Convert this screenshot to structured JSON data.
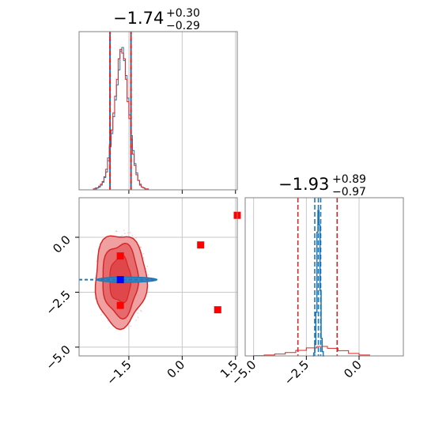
{
  "colors": {
    "red": "#d62728",
    "blue": "#1f77b4",
    "marker_red": "#ff0000",
    "marker_blue": "#0000ff",
    "grid": "#c8c8c8",
    "frame": "#808080",
    "fill_outer": "#f0a0a0",
    "fill_inner": "#e0474a"
  },
  "chart_data": [
    {
      "panel": "marginal-x",
      "type": "histogram",
      "title": {
        "value": "−1.74",
        "upper": "+0.30",
        "lower": "−0.29"
      },
      "xlim": [
        -2.9,
        1.55
      ],
      "grid": true,
      "quantile_lines": [
        -2.03,
        -1.74,
        -1.44
      ],
      "series": [
        {
          "name": "",
          "color": "#1f77b4",
          "bins": [
            -2.5,
            -2.45,
            -2.4,
            -2.35,
            -2.3,
            -2.25,
            -2.2,
            -2.15,
            -2.1,
            -2.05,
            -2.0,
            -1.95,
            -1.9,
            -1.85,
            -1.8,
            -1.75,
            -1.7,
            -1.65,
            -1.6,
            -1.55,
            -1.5,
            -1.45,
            -1.4,
            -1.35,
            -1.3,
            -1.25,
            -1.2,
            -1.15,
            -1.1,
            -1.05,
            -1.0,
            -0.95,
            -0.9
          ],
          "counts": [
            1,
            1,
            2,
            3,
            5,
            8,
            13,
            19,
            31,
            46,
            60,
            78,
            96,
            112,
            128,
            148,
            152,
            138,
            122,
            98,
            80,
            58,
            42,
            28,
            18,
            10,
            6,
            3,
            2,
            1,
            1,
            0
          ]
        },
        {
          "name": "",
          "color": "#d62728",
          "bins": [
            -2.5,
            -2.45,
            -2.4,
            -2.35,
            -2.3,
            -2.25,
            -2.2,
            -2.15,
            -2.1,
            -2.05,
            -2.0,
            -1.95,
            -1.9,
            -1.85,
            -1.8,
            -1.75,
            -1.7,
            -1.65,
            -1.6,
            -1.55,
            -1.5,
            -1.45,
            -1.4,
            -1.35,
            -1.3,
            -1.25,
            -1.2,
            -1.15,
            -1.1,
            -1.05,
            -1.0,
            -0.95,
            -0.9
          ],
          "counts": [
            1,
            2,
            2,
            4,
            6,
            9,
            14,
            22,
            34,
            48,
            64,
            82,
            100,
            118,
            140,
            150,
            146,
            140,
            118,
            94,
            76,
            54,
            38,
            26,
            16,
            10,
            5,
            3,
            2,
            1,
            1,
            0
          ]
        }
      ]
    },
    {
      "panel": "marginal-y",
      "type": "histogram",
      "title": {
        "value": "−1.93",
        "upper": "+0.89",
        "lower": "−0.97"
      },
      "xlim": [
        -5.4,
        2.1
      ],
      "xticks": [
        "−5.0",
        "−2.5",
        "0.0"
      ],
      "grid": true,
      "quantile_lines_red": [
        -2.9,
        -1.93,
        -1.04
      ],
      "quantile_lines_blue": [
        -2.1,
        -1.93,
        -1.82
      ],
      "series": [
        {
          "name": "",
          "color": "#1f77b4",
          "bins": [
            -2.2,
            -2.15,
            -2.1,
            -2.05,
            -2.0,
            -1.95,
            -1.9,
            -1.85,
            -1.8,
            -1.75,
            -1.7,
            -1.65
          ],
          "counts": [
            0.0,
            0.02,
            0.08,
            0.3,
            0.85,
            1.0,
            0.9,
            0.45,
            0.12,
            0.03,
            0.0
          ]
        },
        {
          "name": "",
          "color": "#d62728",
          "bins": [
            -5.0,
            -4.5,
            -4.0,
            -3.5,
            -3.0,
            -2.5,
            -2.0,
            -1.5,
            -1.0,
            -0.5,
            0.0,
            0.5
          ],
          "counts": [
            0.002,
            0.006,
            0.012,
            0.022,
            0.036,
            0.052,
            0.062,
            0.05,
            0.034,
            0.016,
            0.006
          ]
        }
      ]
    },
    {
      "panel": "joint",
      "type": "scatter",
      "xlim": [
        -2.9,
        1.55
      ],
      "ylim": [
        -5.4,
        1.8
      ],
      "xticks": [
        "−1.5",
        "0.0",
        "1.5"
      ],
      "yticks": [
        "0.0",
        "−2.5",
        "−5.0"
      ],
      "grid": true,
      "contours_red": {
        "center": [
          -1.74,
          -1.93
        ],
        "levels": [
          {
            "rx": 0.72,
            "ry": 2.1
          },
          {
            "rx": 0.5,
            "ry": 1.65
          },
          {
            "rx": 0.3,
            "ry": 1.05
          }
        ]
      },
      "blue_band": {
        "x_range": [
          -2.9,
          -0.75
        ],
        "y": -1.93,
        "half_height": 0.12
      },
      "red_markers": [
        {
          "x": -1.74,
          "y": -0.85
        },
        {
          "x": -1.74,
          "y": -3.1
        },
        {
          "x": 0.52,
          "y": -0.35
        },
        {
          "x": 1.0,
          "y": -3.3
        },
        {
          "x": 1.55,
          "y": 1.0
        }
      ],
      "blue_marker": {
        "x": -1.74,
        "y": -1.93
      }
    }
  ]
}
